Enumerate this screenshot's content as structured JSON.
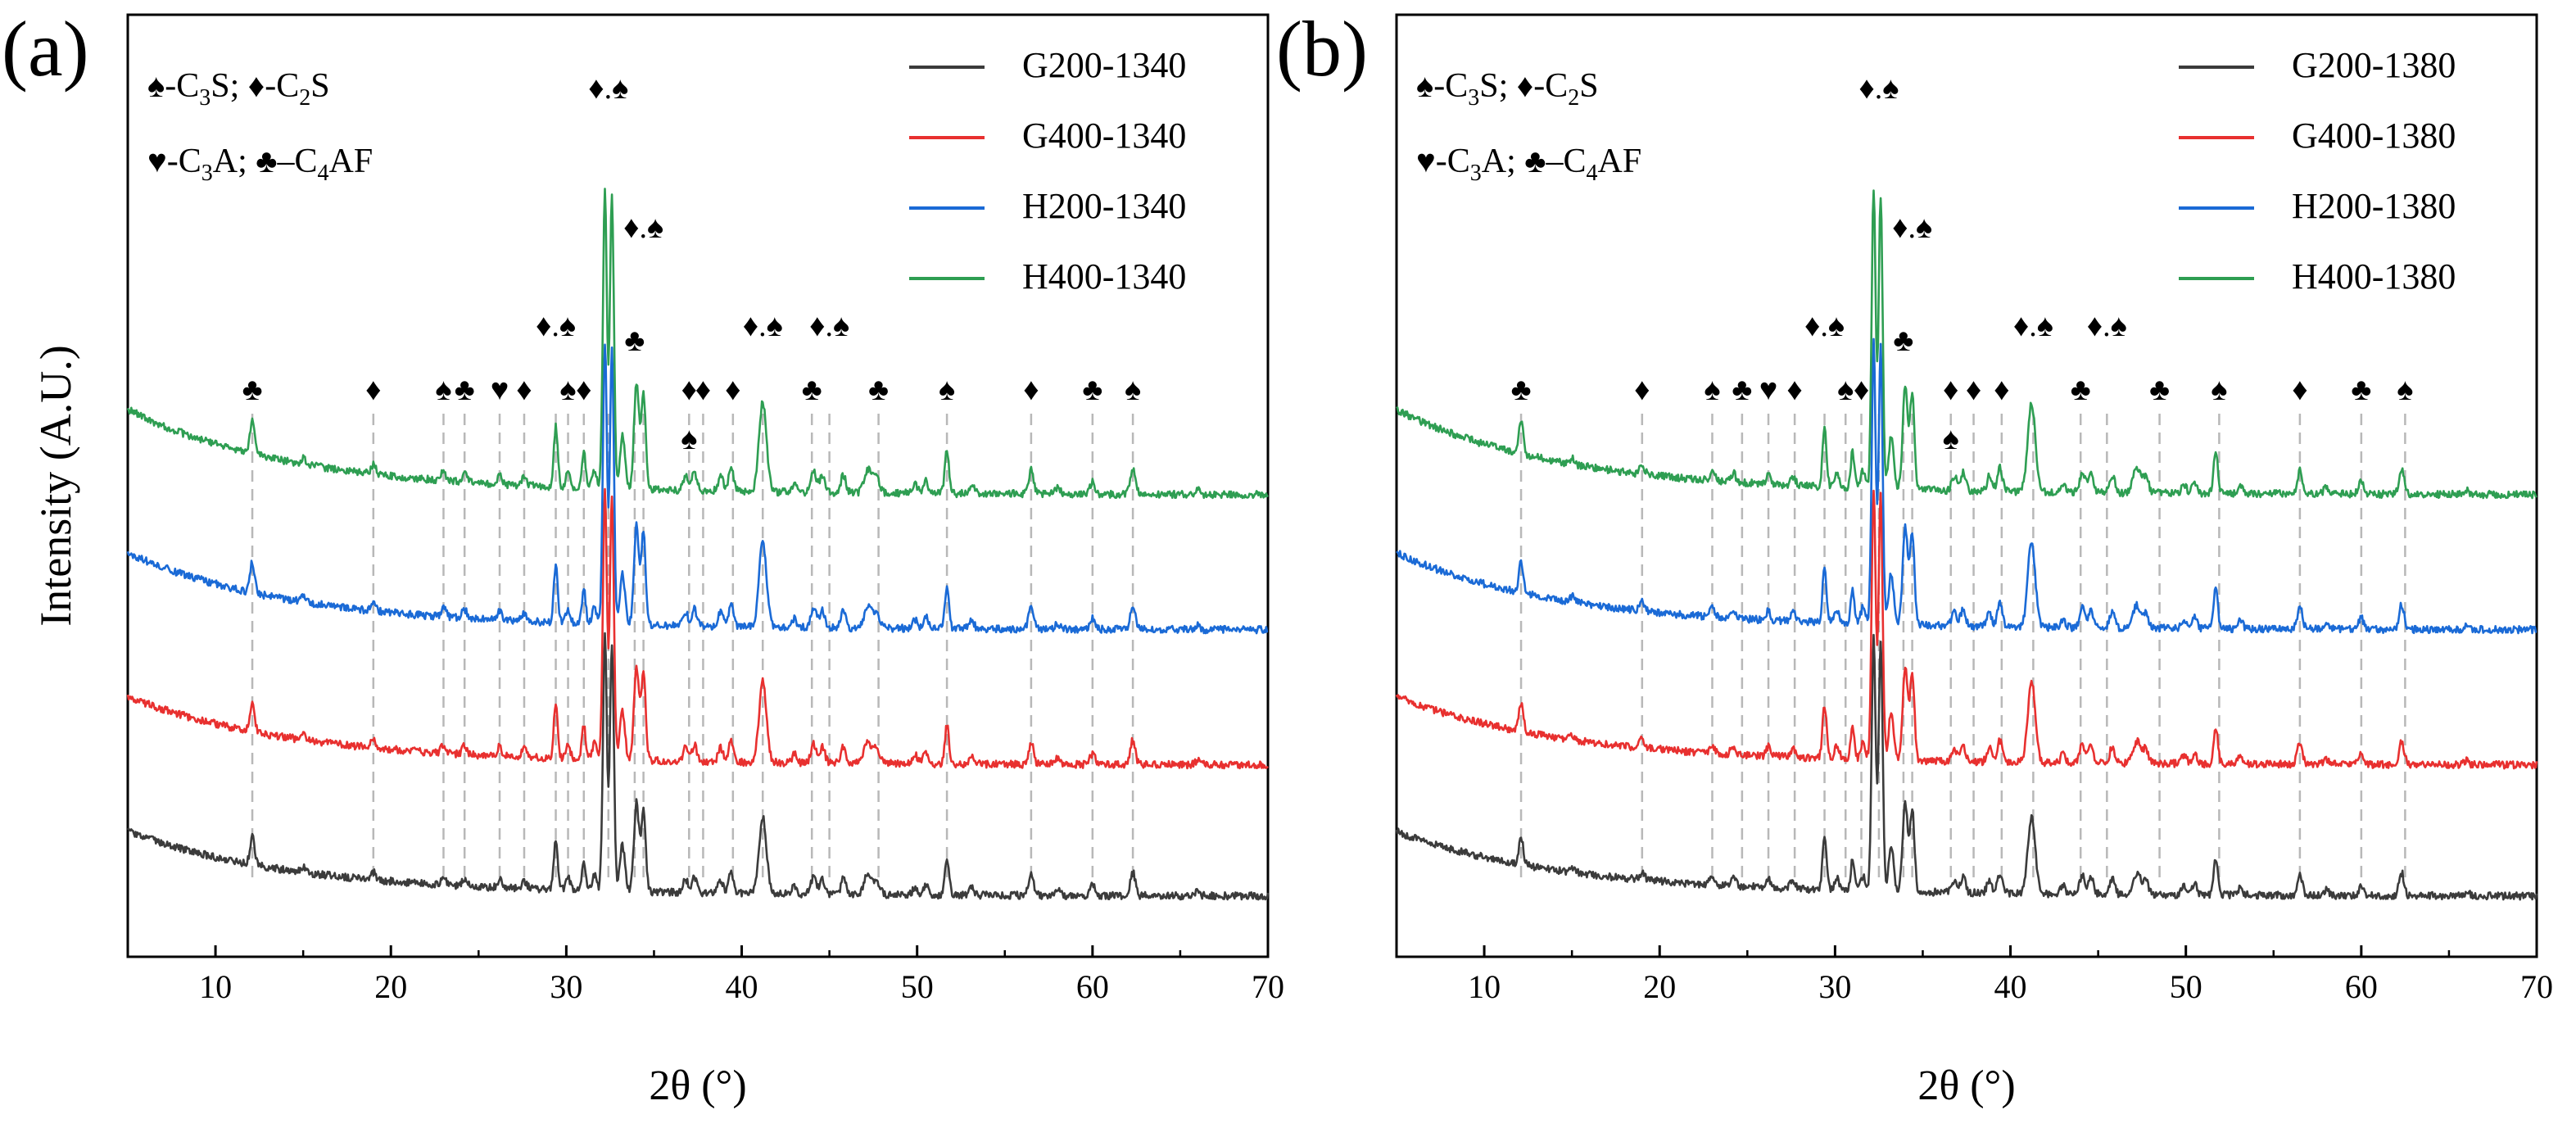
{
  "chart_data": [
    {
      "type": "line",
      "panel_label": "(a)",
      "xlabel": "2θ (°)",
      "ylabel": "Intensity (A.U.)",
      "xlim": [
        5,
        70
      ],
      "xticks": [
        "10",
        "20",
        "30",
        "40",
        "50",
        "60",
        "70"
      ],
      "legend_position": "top-right",
      "phase_key": [
        [
          {
            "s": "♠"
          },
          {
            "t": "-C"
          },
          {
            "sub": "3"
          },
          {
            "t": "S; "
          },
          {
            "s": "♦"
          },
          {
            "t": "-C"
          },
          {
            "sub": "2"
          },
          {
            "t": "S"
          }
        ],
        [
          {
            "s": "♥"
          },
          {
            "t": "-C"
          },
          {
            "sub": "3"
          },
          {
            "t": "A; "
          },
          {
            "s": "♣"
          },
          {
            "t": "–C"
          },
          {
            "sub": "4"
          },
          {
            "t": "AF"
          }
        ]
      ],
      "series": [
        {
          "name": "G200-1340",
          "color": "#3b3b3b"
        },
        {
          "name": "G400-1340",
          "color": "#e8302f"
        },
        {
          "name": "H200-1340",
          "color": "#1a6ad6"
        },
        {
          "name": "H400-1340",
          "color": "#2e9e52"
        }
      ],
      "peak_markers": [
        {
          "x": 12.1,
          "label": "♣"
        },
        {
          "x": 19.0,
          "label": "♦"
        },
        {
          "x": 23.0,
          "label": "♠"
        },
        {
          "x": 24.2,
          "label": "♣"
        },
        {
          "x": 26.2,
          "label": "♥"
        },
        {
          "x": 27.6,
          "label": "♦"
        },
        {
          "x": 29.4,
          "label": "♦.♠"
        },
        {
          "x": 30.1,
          "label": "♠"
        },
        {
          "x": 31.0,
          "label": "♦"
        },
        {
          "x": 32.4,
          "label": "♦.♠"
        },
        {
          "x": 34.4,
          "label": "♦.♠"
        },
        {
          "x": 33.9,
          "label": "♣"
        },
        {
          "x": 37.0,
          "label": "♦"
        },
        {
          "x": 37.0,
          "label": "♠"
        },
        {
          "x": 37.8,
          "label": "♦"
        },
        {
          "x": 39.5,
          "label": "♦"
        },
        {
          "x": 41.2,
          "label": "♦.♠"
        },
        {
          "x": 44.0,
          "label": "♣"
        },
        {
          "x": 45.0,
          "label": "♦.♠"
        },
        {
          "x": 47.8,
          "label": "♣"
        },
        {
          "x": 51.7,
          "label": "♠"
        },
        {
          "x": 56.5,
          "label": "♦"
        },
        {
          "x": 60.0,
          "label": "♣"
        },
        {
          "x": 62.3,
          "label": "♠"
        }
      ]
    },
    {
      "type": "line",
      "panel_label": "(b)",
      "xlabel": "2θ (°)",
      "ylabel": "",
      "xlim": [
        5,
        70
      ],
      "xticks": [
        "10",
        "20",
        "30",
        "40",
        "50",
        "60",
        "70"
      ],
      "legend_position": "top-right",
      "phase_key": [
        [
          {
            "s": "♠"
          },
          {
            "t": "-C"
          },
          {
            "sub": "3"
          },
          {
            "t": "S; "
          },
          {
            "s": "♦"
          },
          {
            "t": "-C"
          },
          {
            "sub": "2"
          },
          {
            "t": "S"
          }
        ],
        [
          {
            "s": "♥"
          },
          {
            "t": "-C"
          },
          {
            "sub": "3"
          },
          {
            "t": "A; "
          },
          {
            "s": "♣"
          },
          {
            "t": "–C"
          },
          {
            "sub": "4"
          },
          {
            "t": "AF"
          }
        ]
      ],
      "series": [
        {
          "name": "G200-1380",
          "color": "#3b3b3b"
        },
        {
          "name": "G400-1380",
          "color": "#e8302f"
        },
        {
          "name": "H200-1380",
          "color": "#1a6ad6"
        },
        {
          "name": "H400-1380",
          "color": "#2e9e52"
        }
      ],
      "peak_markers": [
        {
          "x": 12.1,
          "label": "♣"
        },
        {
          "x": 19.0,
          "label": "♦"
        },
        {
          "x": 23.0,
          "label": "♠"
        },
        {
          "x": 24.7,
          "label": "♣"
        },
        {
          "x": 26.2,
          "label": "♥"
        },
        {
          "x": 27.7,
          "label": "♦"
        },
        {
          "x": 29.4,
          "label": "♦.♠"
        },
        {
          "x": 30.6,
          "label": "♠"
        },
        {
          "x": 31.5,
          "label": "♦"
        },
        {
          "x": 32.5,
          "label": "♦.♠"
        },
        {
          "x": 34.4,
          "label": "♦.♠"
        },
        {
          "x": 33.9,
          "label": "♣"
        },
        {
          "x": 36.6,
          "label": "♦"
        },
        {
          "x": 36.6,
          "label": "♠"
        },
        {
          "x": 37.9,
          "label": "♦"
        },
        {
          "x": 39.5,
          "label": "♦"
        },
        {
          "x": 41.3,
          "label": "♦.♠"
        },
        {
          "x": 44.0,
          "label": "♣"
        },
        {
          "x": 45.5,
          "label": "♦.♠"
        },
        {
          "x": 48.5,
          "label": "♣"
        },
        {
          "x": 51.9,
          "label": "♠"
        },
        {
          "x": 56.5,
          "label": "♦"
        },
        {
          "x": 60.0,
          "label": "♣"
        },
        {
          "x": 62.5,
          "label": "♠"
        }
      ]
    }
  ]
}
